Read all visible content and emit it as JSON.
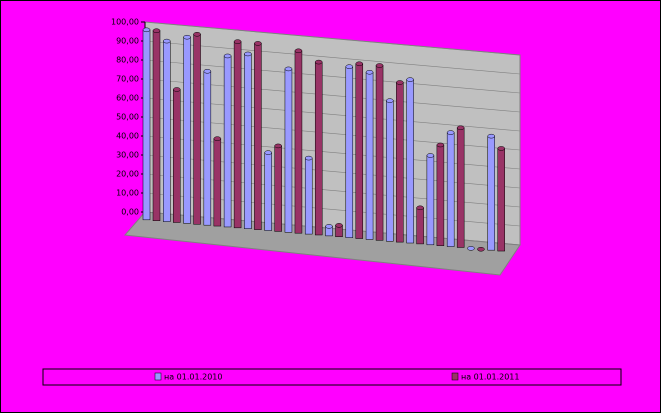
{
  "chart_data": {
    "type": "bar",
    "categories": [
      null,
      null,
      null,
      null,
      null,
      null,
      null,
      null,
      null,
      null,
      null,
      null,
      null,
      null,
      null,
      null,
      null,
      null
    ],
    "series": [
      {
        "name": "на 01.01.2010",
        "color": "#9999ff",
        "values": [
          100,
          95,
          98,
          81,
          90,
          92,
          41,
          86,
          40,
          5,
          90,
          88,
          74,
          86,
          47,
          60,
          0,
          60
        ]
      },
      {
        "name": "на 01.01.2011",
        "color": "#993366",
        "values": [
          100,
          70,
          100,
          46,
          98,
          98,
          45,
          96,
          91,
          6,
          92,
          92,
          84,
          19,
          53,
          63,
          0,
          54
        ]
      }
    ],
    "ylim": [
      0,
      100
    ],
    "yticks": [
      {
        "value": 0,
        "label": "0,00"
      },
      {
        "value": 10,
        "label": "10,00"
      },
      {
        "value": 20,
        "label": "20,00"
      },
      {
        "value": 30,
        "label": "30,00"
      },
      {
        "value": 40,
        "label": "40,00"
      },
      {
        "value": 50,
        "label": "50,00"
      },
      {
        "value": 60,
        "label": "60,00"
      },
      {
        "value": 70,
        "label": "70,00"
      },
      {
        "value": 80,
        "label": "80,00"
      },
      {
        "value": 90,
        "label": "90,00"
      },
      {
        "value": 100,
        "label": "100,00"
      }
    ],
    "grid": true
  }
}
